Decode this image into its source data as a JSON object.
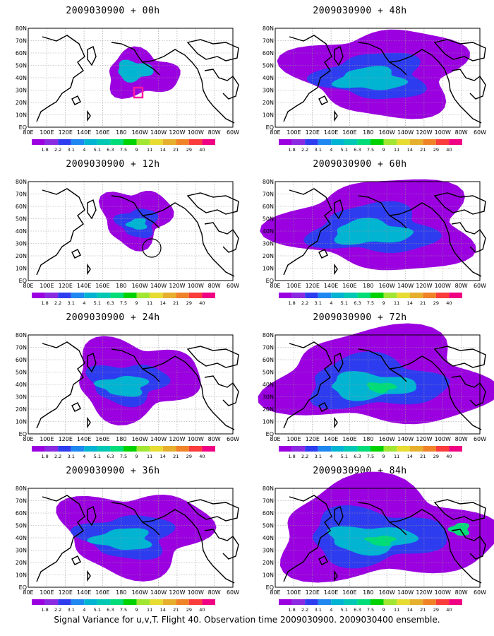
{
  "panels": [
    {
      "title": "2009030900 + 00h",
      "level": 0,
      "marker": "square"
    },
    {
      "title": "2009030900 + 48h",
      "level": 4,
      "marker": "none"
    },
    {
      "title": "2009030900 + 12h",
      "level": 1,
      "marker": "circle"
    },
    {
      "title": "2009030900 + 60h",
      "level": 5,
      "marker": "none"
    },
    {
      "title": "2009030900 + 24h",
      "level": 2,
      "marker": "none"
    },
    {
      "title": "2009030900 + 72h",
      "level": 6,
      "marker": "none"
    },
    {
      "title": "2009030900 + 36h",
      "level": 3,
      "marker": "none"
    },
    {
      "title": "2009030900 + 84h",
      "level": 7,
      "marker": "none"
    }
  ],
  "lat_labels": [
    "80N",
    "70N",
    "60N",
    "50N",
    "40N",
    "30N",
    "20N",
    "10N",
    "EQ"
  ],
  "lon_labels": [
    "80E",
    "100E",
    "120E",
    "140E",
    "160E",
    "180",
    "160W",
    "140W",
    "120W",
    "100W",
    "80W",
    "60W"
  ],
  "colorbar": {
    "labels": [
      "1.8",
      "2.2",
      "3.1",
      "4",
      "5.1",
      "6.3",
      "7.5",
      "9",
      "11",
      "14",
      "21",
      "29",
      "40"
    ],
    "colors": [
      "#9b00e0",
      "#8a2be2",
      "#2e3cf0",
      "#1e88f0",
      "#00b4d2",
      "#00c8b4",
      "#00dc78",
      "#00d200",
      "#a0e632",
      "#e6dc32",
      "#e6af2d",
      "#f08228",
      "#fa3c3c",
      "#f00082"
    ]
  },
  "caption": "Signal Variance for u,v,T. Flight 40. Observation time 2009030900. 2009030400 ensemble."
}
